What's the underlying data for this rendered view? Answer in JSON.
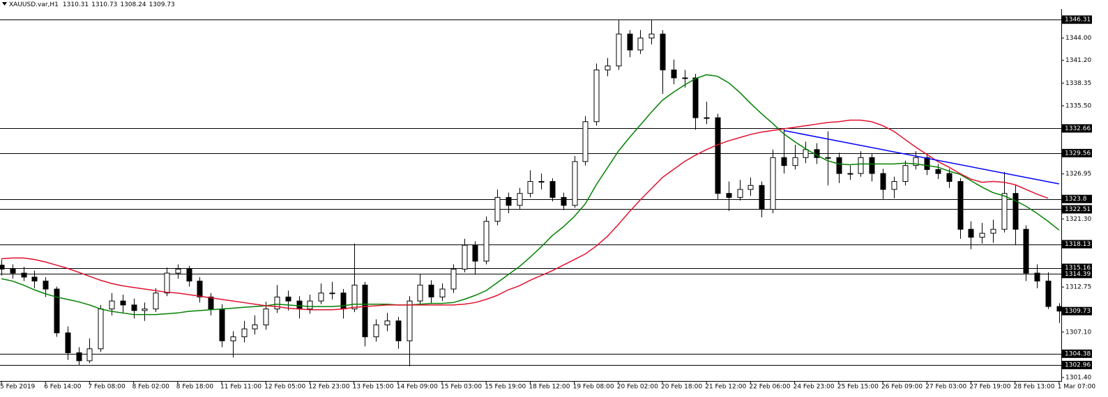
{
  "chart_data": {
    "type": "candlestick",
    "title": "XAUUSD.var,H1",
    "categories": [
      "5 Feb 2019",
      null,
      null,
      null,
      "6 Feb 14:00",
      null,
      null,
      null,
      "7 Feb 08:00",
      null,
      null,
      null,
      "8 Feb 02:00",
      null,
      null,
      null,
      "8 Feb 18:00",
      null,
      null,
      null,
      "11 Feb 11:00",
      null,
      null,
      null,
      "12 Feb 05:00",
      null,
      null,
      null,
      "12 Feb 23:00",
      null,
      null,
      null,
      "13 Feb 15:00",
      null,
      null,
      null,
      "14 Feb 09:00",
      null,
      null,
      null,
      "15 Feb 03:00",
      null,
      null,
      null,
      "15 Feb 19:00",
      null,
      null,
      null,
      "18 Feb 12:00",
      null,
      null,
      null,
      "19 Feb 08:00",
      null,
      null,
      null,
      "20 Feb 02:00",
      null,
      null,
      null,
      "20 Feb 18:00",
      null,
      null,
      null,
      "21 Feb 12:00",
      null,
      null,
      null,
      "22 Feb 06:00",
      null,
      null,
      null,
      "24 Feb 23:00",
      null,
      null,
      null,
      "25 Feb 15:00",
      null,
      null,
      null,
      "26 Feb 09:00",
      null,
      null,
      null,
      "27 Feb 03:00",
      null,
      null,
      null,
      "27 Feb 19:00",
      null,
      null,
      null,
      "28 Feb 13:00",
      null,
      null,
      null,
      "1 Mar 07:00"
    ],
    "candles": [
      [
        1315.5,
        1316.2,
        1314.2,
        1315.0
      ],
      [
        1315.0,
        1315.6,
        1313.8,
        1314.5
      ],
      [
        1314.5,
        1315.3,
        1313.5,
        1314.0
      ],
      [
        1314.0,
        1314.8,
        1312.6,
        1313.5
      ],
      [
        1313.5,
        1314.0,
        1311.5,
        1312.5
      ],
      [
        1312.5,
        1312.8,
        1306.5,
        1307.0
      ],
      [
        1307.0,
        1307.8,
        1303.6,
        1304.5
      ],
      [
        1304.5,
        1305.2,
        1302.9,
        1303.5
      ],
      [
        1303.5,
        1306.3,
        1303.2,
        1305.0
      ],
      [
        1305.0,
        1310.5,
        1304.6,
        1310.0
      ],
      [
        1310.0,
        1312.0,
        1309.2,
        1311.0
      ],
      [
        1311.0,
        1311.8,
        1309.5,
        1310.5
      ],
      [
        1310.5,
        1311.3,
        1308.8,
        1309.8
      ],
      [
        1309.8,
        1310.8,
        1308.5,
        1310.0
      ],
      [
        1310.0,
        1312.6,
        1309.6,
        1312.0
      ],
      [
        1312.0,
        1315.2,
        1311.6,
        1314.5
      ],
      [
        1314.5,
        1315.6,
        1313.8,
        1315.0
      ],
      [
        1315.0,
        1315.4,
        1312.8,
        1313.5
      ],
      [
        1313.5,
        1314.0,
        1310.8,
        1311.5
      ],
      [
        1311.5,
        1312.0,
        1309.2,
        1310.0
      ],
      [
        1310.0,
        1310.6,
        1305.2,
        1306.0
      ],
      [
        1306.0,
        1307.2,
        1303.9,
        1306.5
      ],
      [
        1306.5,
        1308.5,
        1305.8,
        1307.5
      ],
      [
        1307.5,
        1309.2,
        1306.8,
        1308.0
      ],
      [
        1308.0,
        1310.9,
        1307.4,
        1310.0
      ],
      [
        1310.0,
        1313.0,
        1309.5,
        1311.5
      ],
      [
        1311.5,
        1312.3,
        1309.8,
        1311.0
      ],
      [
        1311.0,
        1311.6,
        1308.8,
        1310.0
      ],
      [
        1310.0,
        1311.8,
        1309.4,
        1311.0
      ],
      [
        1311.0,
        1313.2,
        1310.6,
        1312.0
      ],
      [
        1312.0,
        1313.4,
        1311.2,
        1312.0
      ],
      [
        1312.0,
        1312.5,
        1308.8,
        1310.0
      ],
      [
        1310.0,
        1318.2,
        1309.6,
        1313.0
      ],
      [
        1313.0,
        1313.4,
        1305.3,
        1306.5
      ],
      [
        1306.5,
        1308.7,
        1305.9,
        1308.0
      ],
      [
        1308.0,
        1309.5,
        1307.2,
        1308.5
      ],
      [
        1308.5,
        1309.0,
        1305.0,
        1306.0
      ],
      [
        1306.0,
        1311.6,
        1302.8,
        1311.0
      ],
      [
        1311.0,
        1314.4,
        1310.5,
        1313.0
      ],
      [
        1313.0,
        1313.6,
        1310.7,
        1311.5
      ],
      [
        1311.5,
        1313.2,
        1311.0,
        1312.5
      ],
      [
        1312.5,
        1315.6,
        1312.0,
        1315.0
      ],
      [
        1315.0,
        1318.8,
        1314.6,
        1318.0
      ],
      [
        1318.0,
        1318.5,
        1314.3,
        1316.0
      ],
      [
        1316.0,
        1321.6,
        1315.6,
        1321.0
      ],
      [
        1321.0,
        1325.0,
        1320.5,
        1324.0
      ],
      [
        1324.0,
        1324.6,
        1322.0,
        1323.0
      ],
      [
        1323.0,
        1325.2,
        1322.5,
        1324.5
      ],
      [
        1324.5,
        1327.4,
        1324.0,
        1326.0
      ],
      [
        1326.0,
        1327.0,
        1325.0,
        1326.0
      ],
      [
        1326.0,
        1326.4,
        1323.5,
        1324.0
      ],
      [
        1324.0,
        1324.6,
        1322.4,
        1323.0
      ],
      [
        1323.0,
        1329.2,
        1322.7,
        1328.5
      ],
      [
        1328.5,
        1334.2,
        1328.0,
        1333.5
      ],
      [
        1333.5,
        1340.8,
        1333.0,
        1340.0
      ],
      [
        1340.0,
        1341.5,
        1339.2,
        1340.5
      ],
      [
        1340.5,
        1346.3,
        1340.0,
        1344.5
      ],
      [
        1344.5,
        1345.0,
        1341.6,
        1342.5
      ],
      [
        1342.5,
        1345.0,
        1342.0,
        1344.0
      ],
      [
        1344.0,
        1346.3,
        1343.2,
        1344.5
      ],
      [
        1344.5,
        1345.0,
        1337.0,
        1340.0
      ],
      [
        1340.0,
        1341.3,
        1338.2,
        1339.0
      ],
      [
        1339.0,
        1340.0,
        1337.8,
        1339.0
      ],
      [
        1339.0,
        1339.5,
        1332.5,
        1334.0
      ],
      [
        1334.0,
        1336.0,
        1333.2,
        1334.0
      ],
      [
        1334.0,
        1334.5,
        1323.8,
        1324.5
      ],
      [
        1324.5,
        1326.0,
        1322.3,
        1324.0
      ],
      [
        1324.0,
        1326.2,
        1323.6,
        1325.0
      ],
      [
        1325.0,
        1326.5,
        1324.2,
        1325.5
      ],
      [
        1325.5,
        1326.0,
        1321.5,
        1322.5
      ],
      [
        1322.5,
        1330.0,
        1322.0,
        1329.0
      ],
      [
        1329.0,
        1332.7,
        1327.0,
        1328.0
      ],
      [
        1328.0,
        1330.6,
        1327.5,
        1329.0
      ],
      [
        1329.0,
        1331.0,
        1328.3,
        1330.0
      ],
      [
        1330.0,
        1330.8,
        1328.2,
        1329.0
      ],
      [
        1329.0,
        1332.3,
        1325.5,
        1329.0
      ],
      [
        1329.0,
        1329.6,
        1325.8,
        1327.0
      ],
      [
        1327.0,
        1328.0,
        1326.2,
        1327.0
      ],
      [
        1327.0,
        1329.8,
        1326.6,
        1329.0
      ],
      [
        1329.0,
        1329.5,
        1326.0,
        1327.0
      ],
      [
        1327.0,
        1327.6,
        1323.8,
        1325.0
      ],
      [
        1325.0,
        1326.6,
        1323.9,
        1326.0
      ],
      [
        1326.0,
        1328.6,
        1325.5,
        1328.0
      ],
      [
        1328.0,
        1329.8,
        1327.5,
        1329.0
      ],
      [
        1329.0,
        1329.5,
        1326.8,
        1327.5
      ],
      [
        1327.5,
        1328.2,
        1326.3,
        1327.0
      ],
      [
        1327.0,
        1327.6,
        1325.2,
        1326.0
      ],
      [
        1326.0,
        1326.4,
        1318.8,
        1320.0
      ],
      [
        1320.0,
        1321.0,
        1317.5,
        1319.0
      ],
      [
        1319.0,
        1320.8,
        1318.2,
        1319.5
      ],
      [
        1319.5,
        1321.2,
        1318.3,
        1320.0
      ],
      [
        1320.0,
        1327.2,
        1319.6,
        1324.5
      ],
      [
        1324.5,
        1325.5,
        1318.0,
        1320.0
      ],
      [
        1320.0,
        1320.5,
        1313.5,
        1314.5
      ],
      [
        1314.5,
        1315.6,
        1312.6,
        1313.5
      ],
      [
        1313.5,
        1314.6,
        1310.0,
        1310.31
      ],
      [
        1310.31,
        1310.73,
        1308.24,
        1309.73
      ]
    ],
    "candle_up_color": "#ffffff",
    "candle_down_color": "#000000",
    "moving_averages": [
      {
        "color": "#008000",
        "values": [
          1313.8,
          1313.5,
          1313.0,
          1312.4,
          1311.9,
          1311.5,
          1311.2,
          1310.9,
          1310.5,
          1310.0,
          1309.7,
          1309.5,
          1309.3,
          1309.3,
          1309.3,
          1309.4,
          1309.5,
          1309.7,
          1309.8,
          1309.9,
          1310.0,
          1310.1,
          1310.2,
          1310.3,
          1310.4,
          1310.6,
          1310.5,
          1310.4,
          1310.3,
          1310.3,
          1310.3,
          1310.4,
          1310.6,
          1310.6,
          1310.6,
          1310.6,
          1310.5,
          1310.5,
          1310.6,
          1310.7,
          1310.7,
          1310.8,
          1311.2,
          1311.7,
          1312.3,
          1313.3,
          1314.3,
          1315.3,
          1316.5,
          1317.8,
          1319.2,
          1320.3,
          1321.6,
          1323.2,
          1325.6,
          1327.7,
          1329.8,
          1331.5,
          1333.1,
          1334.7,
          1336.2,
          1337.2,
          1338.1,
          1338.9,
          1339.4,
          1339.2,
          1338.4,
          1337.2,
          1335.8,
          1334.5,
          1333.3,
          1332.0,
          1331.0,
          1330.1,
          1329.3,
          1328.6,
          1328.2,
          1328.1,
          1328.2,
          1328.2,
          1328.2,
          1328.2,
          1328.3,
          1328.2,
          1328.0,
          1327.8,
          1327.3,
          1326.9,
          1326.1,
          1325.3,
          1324.6,
          1324.2,
          1323.6,
          1322.9,
          1322.0,
          1321.0,
          1319.9
        ]
      },
      {
        "color": "#e0102c",
        "values": [
          1316.3,
          1316.4,
          1316.4,
          1316.2,
          1315.9,
          1315.5,
          1315.1,
          1314.6,
          1314.1,
          1313.6,
          1313.2,
          1312.9,
          1312.7,
          1312.5,
          1312.3,
          1312.1,
          1312.0,
          1311.8,
          1311.6,
          1311.4,
          1311.2,
          1311.0,
          1310.8,
          1310.6,
          1310.4,
          1310.3,
          1310.1,
          1310.0,
          1309.9,
          1309.9,
          1309.9,
          1310.0,
          1310.2,
          1310.3,
          1310.4,
          1310.5,
          1310.5,
          1310.5,
          1310.5,
          1310.5,
          1310.5,
          1310.5,
          1310.6,
          1310.8,
          1311.2,
          1311.7,
          1312.4,
          1312.9,
          1313.6,
          1314.2,
          1314.8,
          1315.5,
          1316.2,
          1316.9,
          1317.9,
          1319.1,
          1320.6,
          1322.2,
          1323.7,
          1325.1,
          1326.5,
          1327.5,
          1328.5,
          1329.3,
          1330.0,
          1330.6,
          1331.1,
          1331.5,
          1331.9,
          1332.2,
          1332.4,
          1332.6,
          1332.8,
          1333.0,
          1333.2,
          1333.4,
          1333.5,
          1333.7,
          1333.7,
          1333.5,
          1333.0,
          1332.3,
          1331.3,
          1330.3,
          1329.4,
          1328.5,
          1327.8,
          1327.0,
          1326.3,
          1325.9,
          1326.0,
          1325.9,
          1325.6,
          1325.0,
          1324.4,
          1323.9,
          null
        ]
      }
    ],
    "trendline": {
      "color": "#0000ff",
      "x": [
        71,
        96
      ],
      "values": [
        1332.4,
        1325.7
      ]
    },
    "levels": [
      1346.31,
      1332.66,
      1329.56,
      1323.8,
      1322.51,
      1318.13,
      1315.16,
      1314.39,
      1304.38,
      1302.96
    ],
    "level_color": "#000000",
    "ylim": [
      1300.96,
      1347.64
    ],
    "yticks": [
      {
        "value": 1344.0,
        "label": "1344.00"
      },
      {
        "value": 1341.2,
        "label": "1341.20"
      },
      {
        "value": 1338.35,
        "label": "1338.35"
      },
      {
        "value": 1335.5,
        "label": "1335.50"
      },
      {
        "value": 1326.95,
        "label": "1326.95"
      },
      {
        "value": 1321.3,
        "label": "1321.30"
      },
      {
        "value": 1312.75,
        "label": "1312.75"
      },
      {
        "value": 1307.1,
        "label": "1307.10"
      },
      {
        "value": 1301.4,
        "label": "1301.40"
      }
    ]
  }
}
